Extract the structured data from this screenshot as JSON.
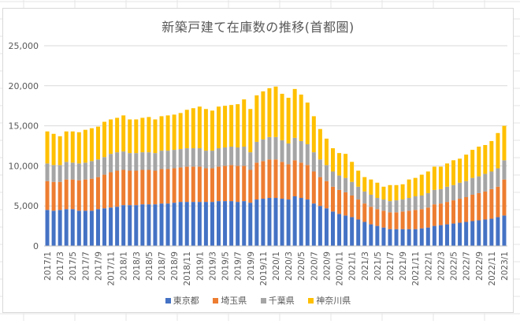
{
  "chart_data": {
    "type": "bar",
    "stacked": true,
    "title": "新築戸建て在庫数の推移(首都圏)",
    "xlabel": "",
    "ylabel": "",
    "ylim": [
      0,
      25000
    ],
    "yticks": [
      0,
      5000,
      10000,
      15000,
      20000,
      25000
    ],
    "ytick_labels": [
      "0",
      "5,000",
      "10,000",
      "15,000",
      "20,000",
      "25,000"
    ],
    "grid": true,
    "legend_position": "bottom",
    "categories": [
      "2017/1",
      "2017/2",
      "2017/3",
      "2017/4",
      "2017/5",
      "2017/6",
      "2017/7",
      "2017/8",
      "2017/9",
      "2017/10",
      "2017/11",
      "2017/12",
      "2018/1",
      "2018/2",
      "2018/3",
      "2018/4",
      "2018/5",
      "2018/6",
      "2018/7",
      "2018/8",
      "2018/9",
      "2018/10",
      "2018/11",
      "2018/12",
      "2019/1",
      "2019/2",
      "2019/3",
      "2019/4",
      "2019/5",
      "2019/6",
      "2019/7",
      "2019/8",
      "2019/9",
      "2019/10",
      "2019/11",
      "2019/12",
      "2020/1",
      "2020/2",
      "2020/3",
      "2020/4",
      "2020/5",
      "2020/6",
      "2020/7",
      "2020/8",
      "2020/9",
      "2020/10",
      "2020/11",
      "2020/12",
      "2021/1",
      "2021/2",
      "2021/3",
      "2021/4",
      "2021/5",
      "2021/6",
      "2021/7",
      "2021/8",
      "2021/9",
      "2021/10",
      "2021/11",
      "2021/12",
      "2022/1",
      "2022/2",
      "2022/3",
      "2022/4",
      "2022/5",
      "2022/6",
      "2022/7",
      "2022/8",
      "2022/9",
      "2022/10",
      "2022/11",
      "2022/12",
      "2023/1"
    ],
    "series": [
      {
        "name": "東京都",
        "color": "#4472c4",
        "values": [
          4500,
          4400,
          4500,
          4600,
          4600,
          4400,
          4400,
          4400,
          4600,
          4700,
          4800,
          4900,
          5100,
          5100,
          5100,
          5200,
          5200,
          5200,
          5300,
          5300,
          5400,
          5500,
          5500,
          5500,
          5500,
          5500,
          5500,
          5600,
          5600,
          5600,
          5500,
          5600,
          5400,
          5800,
          5900,
          6000,
          6000,
          5900,
          5800,
          6200,
          6000,
          5800,
          5300,
          5000,
          4700,
          4300,
          4000,
          3800,
          3600,
          3300,
          3000,
          2700,
          2500,
          2300,
          2100,
          2100,
          2100,
          2100,
          2100,
          2200,
          2300,
          2500,
          2600,
          2700,
          2800,
          2900,
          3000,
          3100,
          3200,
          3300,
          3400,
          3600,
          3800
        ]
      },
      {
        "name": "埼玉県",
        "color": "#ed7d31",
        "values": [
          3600,
          3600,
          3500,
          3700,
          3700,
          3800,
          3900,
          4000,
          4000,
          4200,
          4400,
          4500,
          4400,
          4300,
          4300,
          4300,
          4300,
          4200,
          4300,
          4300,
          4300,
          4300,
          4400,
          4400,
          4400,
          4200,
          4200,
          4300,
          4400,
          4500,
          4500,
          4400,
          4100,
          4600,
          4700,
          4800,
          4800,
          4600,
          4400,
          4500,
          4400,
          4300,
          4000,
          3600,
          3400,
          3100,
          3000,
          2900,
          2700,
          2500,
          2300,
          2200,
          2100,
          2100,
          2100,
          2100,
          2200,
          2300,
          2400,
          2400,
          2500,
          2700,
          2700,
          2800,
          2900,
          3000,
          3100,
          3300,
          3400,
          3500,
          3700,
          3800,
          4500
        ]
      },
      {
        "name": "千葉県",
        "color": "#a5a5a5",
        "values": [
          2200,
          2100,
          2100,
          2200,
          2100,
          2100,
          2100,
          2200,
          2200,
          2200,
          2300,
          2300,
          2300,
          2200,
          2200,
          2200,
          2200,
          2200,
          2300,
          2300,
          2300,
          2300,
          2300,
          2300,
          2300,
          2200,
          2200,
          2300,
          2300,
          2300,
          2300,
          2400,
          2200,
          2600,
          2700,
          2800,
          2800,
          2700,
          2600,
          2800,
          2700,
          2600,
          2400,
          2200,
          2000,
          1900,
          1800,
          1800,
          1700,
          1600,
          1500,
          1500,
          1400,
          1400,
          1400,
          1500,
          1500,
          1600,
          1700,
          1700,
          1800,
          1800,
          1800,
          1900,
          1900,
          2000,
          2000,
          2100,
          2100,
          2200,
          2200,
          2300,
          2400
        ]
      },
      {
        "name": "神奈川県",
        "color": "#ffc000",
        "values": [
          4000,
          3900,
          3600,
          3800,
          3900,
          3900,
          4100,
          4100,
          4100,
          4400,
          4300,
          4300,
          4500,
          4200,
          4200,
          4300,
          4400,
          4200,
          4300,
          4400,
          4400,
          4500,
          4800,
          5000,
          5200,
          5200,
          5000,
          5200,
          5200,
          5200,
          5400,
          5900,
          5400,
          5800,
          6000,
          6100,
          6300,
          5800,
          5700,
          6100,
          5800,
          5200,
          4500,
          3800,
          3300,
          2900,
          2800,
          3000,
          2500,
          2000,
          1800,
          1900,
          1900,
          1600,
          2000,
          1900,
          1900,
          2300,
          2300,
          2600,
          2700,
          2900,
          2800,
          2900,
          3100,
          3000,
          3300,
          3500,
          3700,
          3600,
          3800,
          4400,
          4300
        ]
      }
    ]
  },
  "icons": {
    "legend_marker": "square-swatch"
  }
}
